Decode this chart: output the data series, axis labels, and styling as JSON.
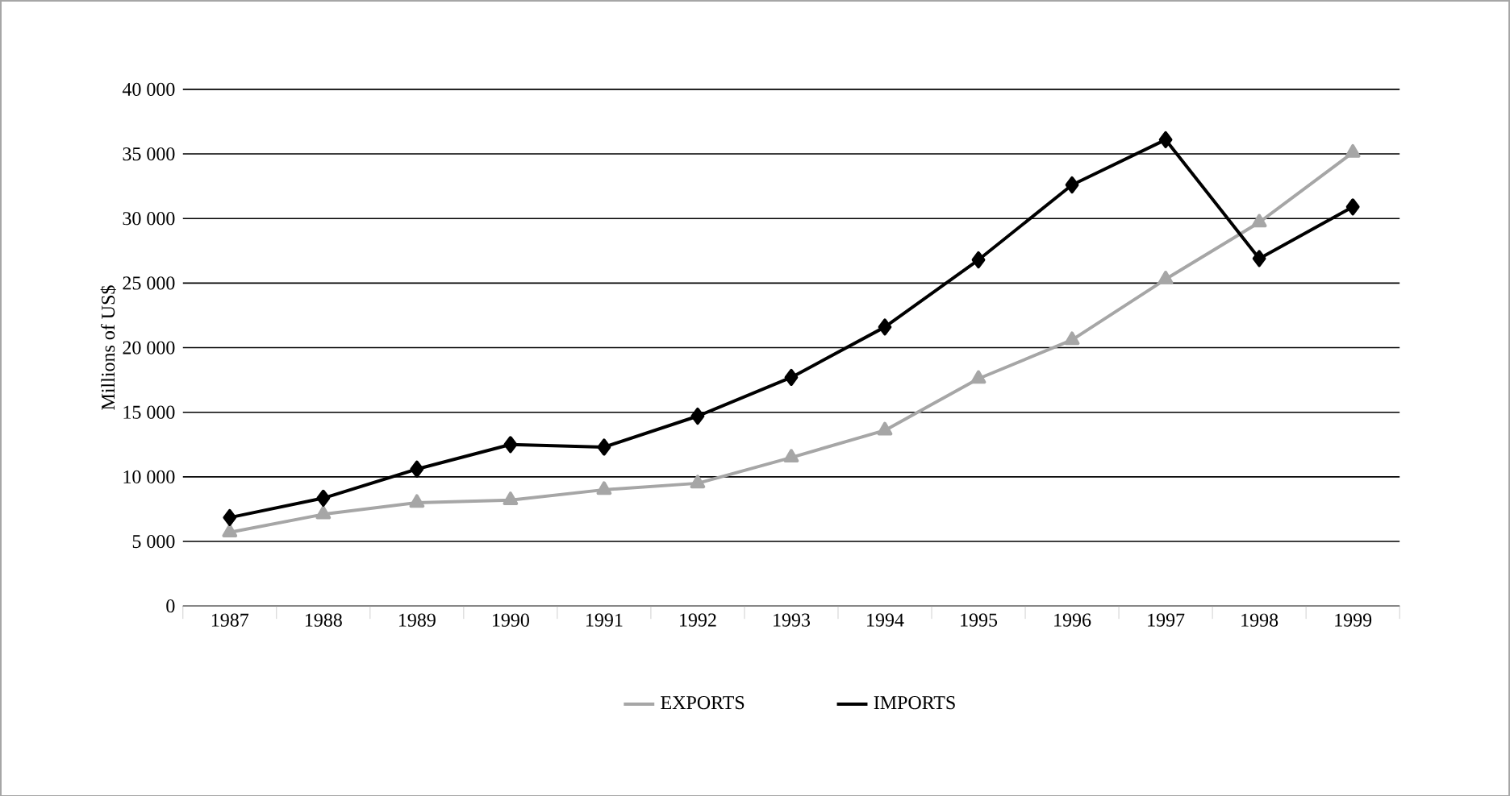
{
  "chart_data": {
    "type": "line",
    "ylabel": "Millions of US$",
    "categories": [
      "1987",
      "1988",
      "1989",
      "1990",
      "1991",
      "1992",
      "1993",
      "1994",
      "1995",
      "1996",
      "1997",
      "1998",
      "1999"
    ],
    "series": [
      {
        "name": "EXPORTS",
        "color": "#a6a6a6",
        "marker": "triangle",
        "values": [
          5700,
          7100,
          8000,
          8200,
          9000,
          9500,
          11500,
          13600,
          17600,
          20600,
          25300,
          29700,
          35100
        ]
      },
      {
        "name": "IMPORTS",
        "color": "#000000",
        "marker": "diamond",
        "values": [
          6850,
          8350,
          10600,
          12500,
          12300,
          14700,
          17700,
          21600,
          26800,
          32600,
          36100,
          26900,
          30900
        ]
      }
    ],
    "ylim": [
      0,
      40000
    ],
    "yticks": [
      0,
      {
        "value": 5000,
        "label": "5 000"
      },
      {
        "value": 10000,
        "label": "10 000"
      },
      {
        "value": 15000,
        "label": "15 000"
      },
      {
        "value": 20000,
        "label": "20 000"
      },
      {
        "value": 25000,
        "label": "25 000"
      },
      {
        "value": 30000,
        "label": "30 000"
      },
      {
        "value": 35000,
        "label": "35 000"
      },
      {
        "value": 40000,
        "label": "40 000"
      }
    ],
    "grid": "y",
    "legend": "bottom",
    "line_style": "solid"
  }
}
